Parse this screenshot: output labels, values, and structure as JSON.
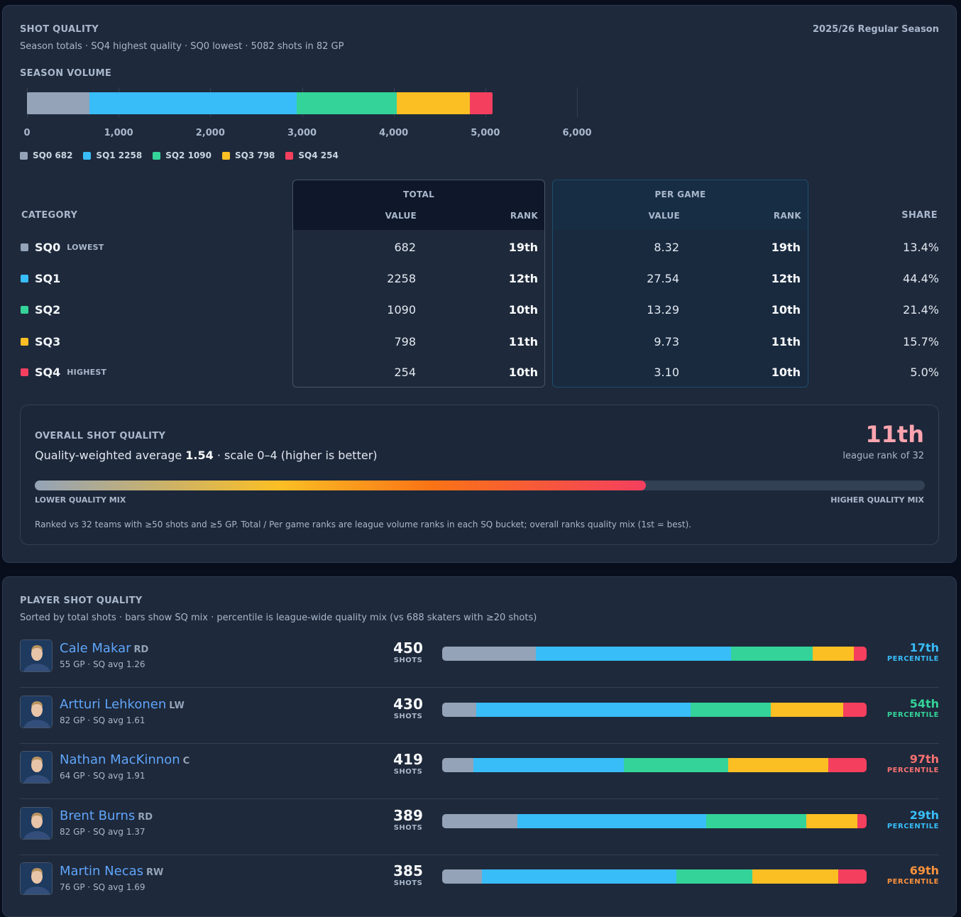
{
  "header": {
    "title": "SHOT QUALITY",
    "subtitle": "Season totals · SQ4 highest quality · SQ0 lowest · 5082 shots in 82 GP",
    "season": "2025/26 Regular Season"
  },
  "chart_data": {
    "type": "bar",
    "title": "SEASON VOLUME",
    "orientation": "horizontal-stacked",
    "categories": [
      "Season"
    ],
    "series": [
      {
        "name": "SQ0",
        "values": [
          682
        ]
      },
      {
        "name": "SQ1",
        "values": [
          2258
        ]
      },
      {
        "name": "SQ2",
        "values": [
          1090
        ]
      },
      {
        "name": "SQ3",
        "values": [
          798
        ]
      },
      {
        "name": "SQ4",
        "values": [
          254
        ]
      }
    ],
    "xlim": [
      0,
      6000
    ],
    "xticks": [
      "0",
      "1,000",
      "2,000",
      "3,000",
      "4,000",
      "5,000",
      "6,000"
    ],
    "legend": [
      "SQ0 682",
      "SQ1 2258",
      "SQ2 1090",
      "SQ3 798",
      "SQ4 254"
    ],
    "grid": true,
    "legend_placement": "bottom-left"
  },
  "colors": {
    "SQ0": "#94a3b8",
    "SQ1": "#38bdf8",
    "SQ2": "#34d399",
    "SQ3": "#fbbf24",
    "SQ4": "#f43f5e"
  },
  "table": {
    "category_header": "CATEGORY",
    "total_header": "TOTAL",
    "per_game_header": "PER GAME",
    "value_header": "VALUE",
    "rank_header": "RANK",
    "share_header": "SHARE",
    "rows": [
      {
        "name": "SQ0",
        "tag": "LOWEST",
        "total": "682",
        "total_rank": "19th",
        "pg": "8.32",
        "pg_rank": "19th",
        "share": "13.4%"
      },
      {
        "name": "SQ1",
        "tag": "",
        "total": "2258",
        "total_rank": "12th",
        "pg": "27.54",
        "pg_rank": "12th",
        "share": "44.4%"
      },
      {
        "name": "SQ2",
        "tag": "",
        "total": "1090",
        "total_rank": "10th",
        "pg": "13.29",
        "pg_rank": "10th",
        "share": "21.4%"
      },
      {
        "name": "SQ3",
        "tag": "",
        "total": "798",
        "total_rank": "11th",
        "pg": "9.73",
        "pg_rank": "11th",
        "share": "15.7%"
      },
      {
        "name": "SQ4",
        "tag": "HIGHEST",
        "total": "254",
        "total_rank": "10th",
        "pg": "3.10",
        "pg_rank": "10th",
        "share": "5.0%"
      }
    ]
  },
  "overall": {
    "title": "OVERALL SHOT QUALITY",
    "desc_prefix": "Quality-weighted average",
    "avg": "1.54",
    "desc_suffix": "· scale 0–4 (higher is better)",
    "rank": "11th",
    "rank_label": "league rank of 32",
    "fill_fraction": 0.687,
    "low_label": "LOWER QUALITY MIX",
    "high_label": "HIGHER QUALITY MIX",
    "footnote": "Ranked vs 32 teams with ≥50 shots and ≥5 GP. Total / Per game ranks are league volume ranks in each SQ bucket; overall ranks quality mix (1st = best)."
  },
  "players_section": {
    "title": "PLAYER SHOT QUALITY",
    "subtitle": "Sorted by total shots · bars show SQ mix · percentile is league-wide quality mix (vs 688 skaters with ≥20 shots)",
    "shots_label": "SHOTS",
    "percentile_label": "PERCENTILE",
    "players": [
      {
        "name": "Cale Makar",
        "pos": "RD",
        "meta": "55 GP · SQ avg 1.26",
        "shots": "450",
        "mix": [
          0.221,
          0.459,
          0.193,
          0.097,
          0.03
        ],
        "percentile": "17th",
        "pct_color": "#38bdf8",
        "avatar_icon": "player-headshot-icon"
      },
      {
        "name": "Artturi Lehkonen",
        "pos": "LW",
        "meta": "82 GP · SQ avg 1.61",
        "shots": "430",
        "mix": [
          0.08,
          0.506,
          0.188,
          0.171,
          0.055
        ],
        "percentile": "54th",
        "pct_color": "#34d399",
        "avatar_icon": "player-headshot-icon"
      },
      {
        "name": "Nathan MacKinnon",
        "pos": "C",
        "meta": "64 GP · SQ avg 1.91",
        "shots": "419",
        "mix": [
          0.073,
          0.355,
          0.246,
          0.235,
          0.091
        ],
        "percentile": "97th",
        "pct_color": "#f87171",
        "avatar_icon": "player-headshot-icon"
      },
      {
        "name": "Brent Burns",
        "pos": "RD",
        "meta": "82 GP · SQ avg 1.37",
        "shots": "389",
        "mix": [
          0.177,
          0.445,
          0.236,
          0.12,
          0.022
        ],
        "percentile": "29th",
        "pct_color": "#38bdf8",
        "avatar_icon": "player-headshot-icon"
      },
      {
        "name": "Martin Necas",
        "pos": "RW",
        "meta": "76 GP · SQ avg 1.69",
        "shots": "385",
        "mix": [
          0.094,
          0.458,
          0.179,
          0.202,
          0.067
        ],
        "percentile": "69th",
        "pct_color": "#fb923c",
        "avatar_icon": "player-headshot-icon"
      }
    ]
  }
}
